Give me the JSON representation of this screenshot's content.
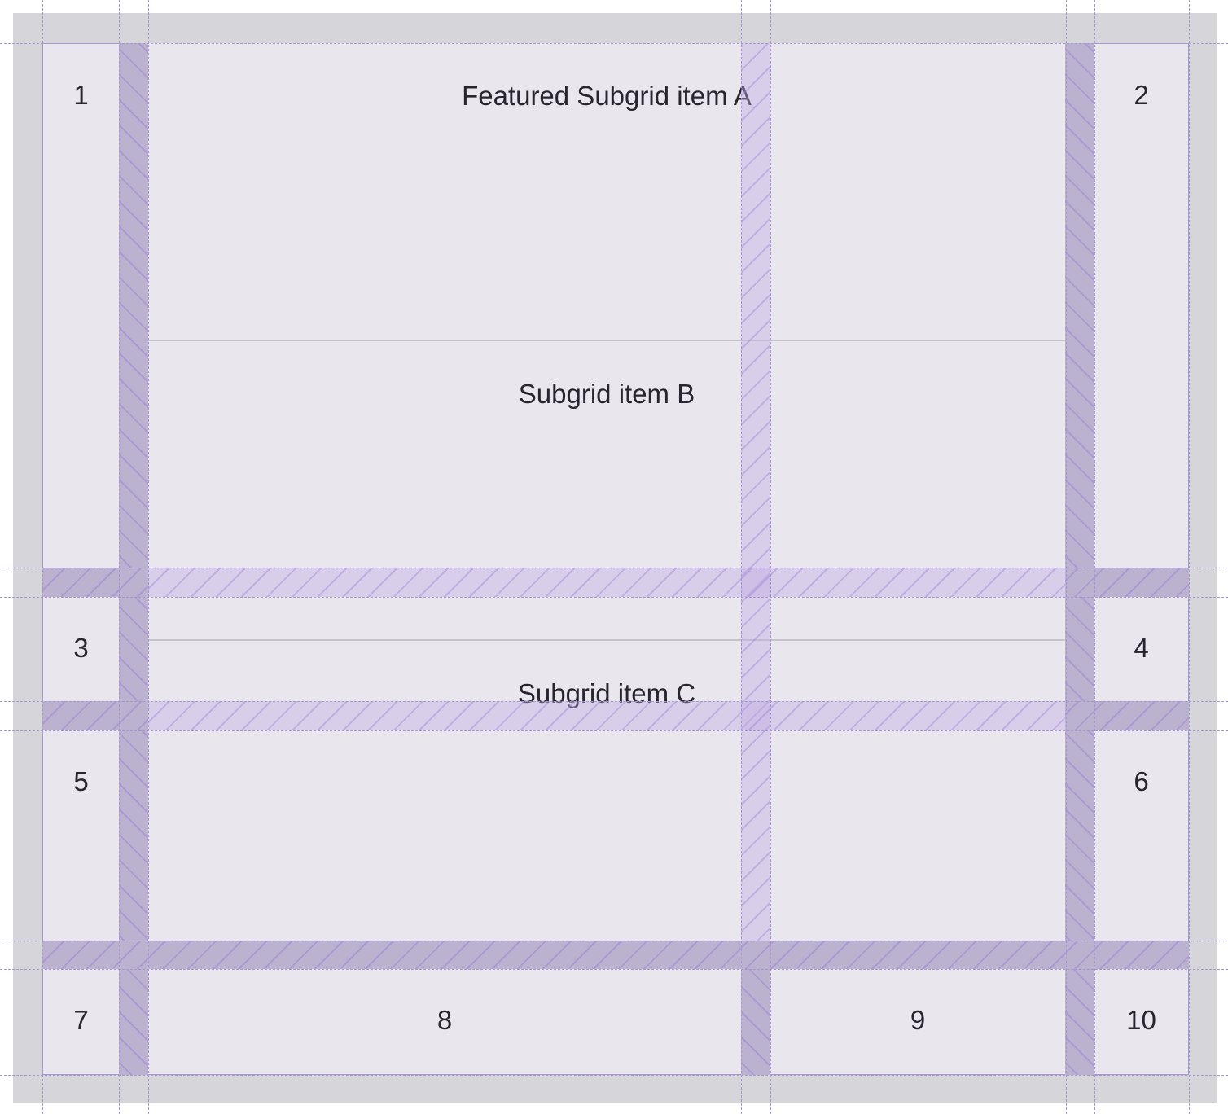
{
  "items": [
    "1",
    "2",
    "3",
    "4",
    "5",
    "6",
    "7",
    "8",
    "9",
    "10"
  ],
  "subgrid": {
    "a": "Featured Subgrid item A",
    "b": "Subgrid item B",
    "c": "Subgrid item C"
  },
  "colors": {
    "background": "#d6d6da",
    "cell": "#e9e6ee",
    "grid_line": "#a895d4",
    "gap": "#bbb2d0",
    "text": "#28252e"
  }
}
